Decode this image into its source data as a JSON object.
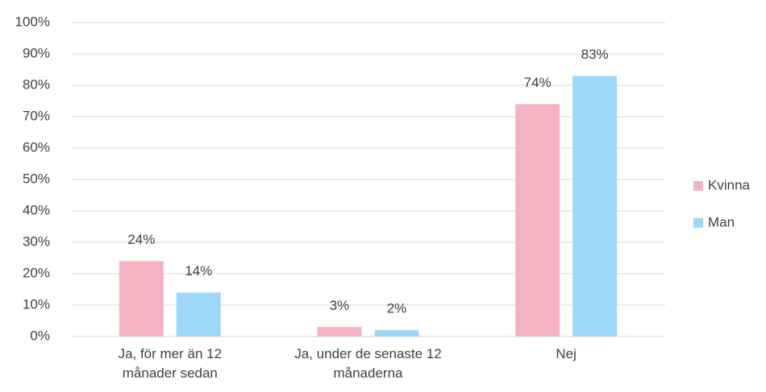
{
  "chart_data": {
    "type": "bar",
    "categories": [
      "Ja, för mer än 12 månader sedan",
      "Ja, under de senaste 12 månaderna",
      "Nej"
    ],
    "series": [
      {
        "name": "Kvinna",
        "color": "#f4b3c2",
        "values": [
          24,
          3,
          74
        ],
        "value_labels": [
          "24%",
          "3%",
          "74%"
        ]
      },
      {
        "name": "Man",
        "color": "#9dd8fb",
        "values": [
          14,
          2,
          83
        ],
        "value_labels": [
          "14%",
          "2%",
          "83%"
        ]
      }
    ],
    "ylim": [
      0,
      100
    ],
    "yticks": [
      {
        "value": 0,
        "label": "0%"
      },
      {
        "value": 10,
        "label": "10%"
      },
      {
        "value": 20,
        "label": "20%"
      },
      {
        "value": 30,
        "label": "30%"
      },
      {
        "value": 40,
        "label": "40%"
      },
      {
        "value": 50,
        "label": "50%"
      },
      {
        "value": 60,
        "label": "60%"
      },
      {
        "value": 70,
        "label": "70%"
      },
      {
        "value": 80,
        "label": "80%"
      },
      {
        "value": 90,
        "label": "90%"
      },
      {
        "value": 100,
        "label": "100%"
      }
    ],
    "grid": true,
    "legend": "right"
  }
}
